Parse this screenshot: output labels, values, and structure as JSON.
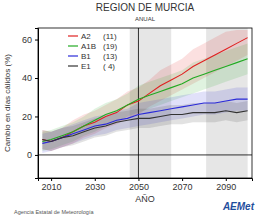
{
  "chart_data": {
    "type": "line",
    "title": "REGION DE MURCIA",
    "subtitle": "ANUAL",
    "y_label": "Cambio en días cálidos (%)",
    "x_label": "AÑO",
    "annotations": [
      "Agencia Estatal de Meteorología",
      "AEMet"
    ],
    "x": [
      2006,
      2010,
      2015,
      2020,
      2025,
      2030,
      2035,
      2040,
      2045,
      2050,
      2055,
      2060,
      2065,
      2070,
      2075,
      2080,
      2085,
      2090,
      2095,
      2100
    ],
    "xlim": [
      2004,
      2102
    ],
    "xticks": [
      2010,
      2030,
      2050,
      2070,
      2090
    ],
    "ylim": [
      -12,
      66
    ],
    "yticks": [
      0,
      20,
      40,
      60
    ],
    "vlines": [
      2050
    ],
    "hlines": [
      0
    ],
    "shaded_periods": [
      [
        2046,
        2065
      ],
      [
        2081,
        2100
      ]
    ],
    "legend": "upper left",
    "grid": false,
    "series": [
      {
        "name": "A2",
        "runs_label": "(11)",
        "color": "#e02020",
        "values": [
          8,
          7,
          9,
          12,
          15,
          17,
          20,
          22,
          26,
          28,
          32,
          36,
          39,
          42,
          46,
          49,
          52,
          55,
          58,
          61
        ],
        "lower": [
          3,
          2,
          4,
          6,
          9,
          11,
          14,
          16,
          19,
          21,
          25,
          28,
          31,
          34,
          37,
          40,
          43,
          46,
          49,
          52
        ],
        "upper": [
          13,
          12,
          14,
          18,
          21,
          23,
          26,
          29,
          33,
          35,
          39,
          44,
          47,
          50,
          55,
          58,
          61,
          64,
          65,
          65
        ]
      },
      {
        "name": "A1B",
        "runs_label": "(19)",
        "color": "#22aa22",
        "values": [
          7,
          8,
          10,
          12,
          15,
          18,
          21,
          23,
          26,
          29,
          31,
          33,
          35,
          37,
          40,
          42,
          44,
          46,
          48,
          50
        ],
        "lower": [
          2,
          3,
          5,
          7,
          10,
          12,
          15,
          17,
          20,
          22,
          24,
          26,
          28,
          30,
          32,
          34,
          36,
          38,
          40,
          42
        ],
        "upper": [
          12,
          13,
          15,
          17,
          20,
          24,
          27,
          29,
          32,
          36,
          38,
          40,
          42,
          44,
          48,
          50,
          52,
          54,
          56,
          58
        ]
      },
      {
        "name": "B1",
        "runs_label": "(13)",
        "color": "#2a2ad8",
        "values": [
          6,
          7,
          9,
          11,
          13,
          15,
          16,
          18,
          19,
          21,
          22,
          23,
          24,
          25,
          26,
          27,
          27,
          28,
          29,
          29
        ],
        "lower": [
          1,
          2,
          4,
          6,
          8,
          10,
          11,
          13,
          14,
          15,
          16,
          17,
          18,
          19,
          20,
          21,
          21,
          22,
          23,
          23
        ],
        "upper": [
          11,
          12,
          14,
          16,
          18,
          20,
          21,
          23,
          24,
          27,
          28,
          29,
          30,
          31,
          32,
          33,
          33,
          34,
          35,
          35
        ]
      },
      {
        "name": "E1",
        "runs_label": "( 4)",
        "color": "#333333",
        "values": [
          8,
          7,
          9,
          10,
          12,
          14,
          15,
          17,
          18,
          19,
          19,
          20,
          21,
          21,
          22,
          22,
          22,
          23,
          22,
          23
        ],
        "lower": [
          3,
          2,
          4,
          5,
          7,
          9,
          10,
          12,
          13,
          14,
          14,
          15,
          16,
          16,
          17,
          17,
          17,
          18,
          17,
          18
        ],
        "upper": [
          13,
          12,
          14,
          15,
          17,
          19,
          20,
          22,
          23,
          24,
          24,
          25,
          26,
          26,
          27,
          27,
          27,
          28,
          27,
          28
        ]
      }
    ]
  }
}
